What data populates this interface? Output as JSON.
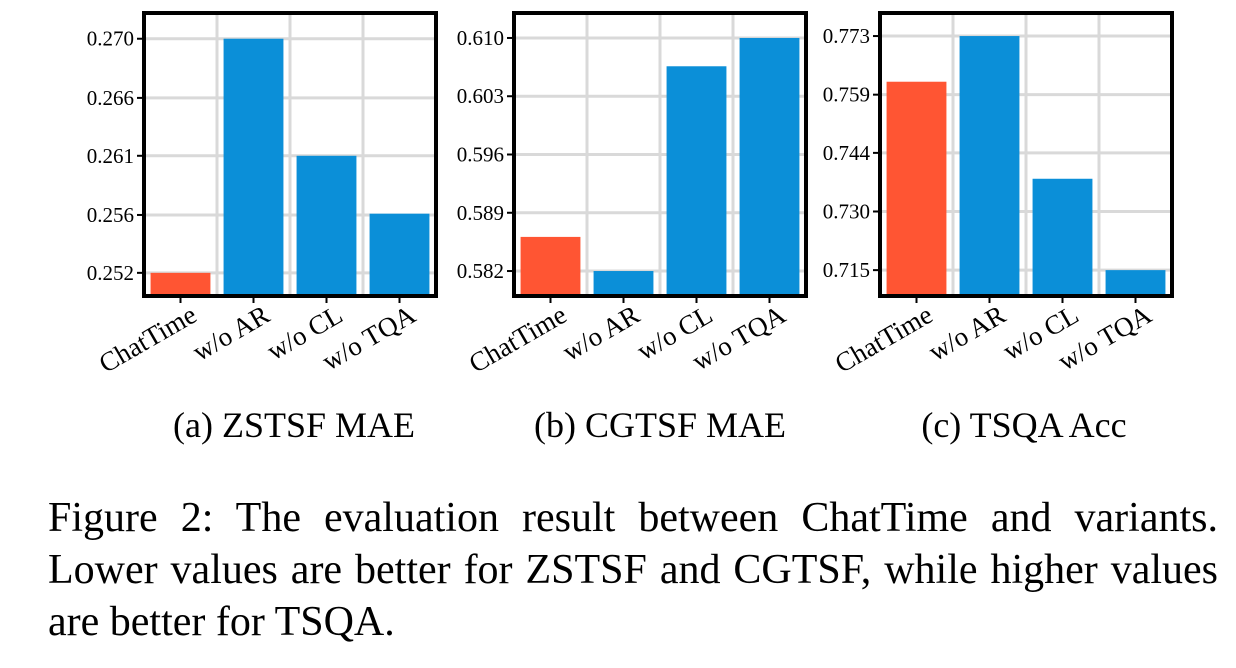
{
  "colors": {
    "highlight": "#ff5533",
    "bar": "#0b8fd8",
    "grid": "#d9d9d9",
    "frame": "#000000"
  },
  "chart_data": [
    {
      "type": "bar",
      "title": "(a) ZSTSF MAE",
      "categories": [
        "ChatTime",
        "w/o AR",
        "w/o CL",
        "w/o TQA"
      ],
      "values": [
        0.2518,
        0.27,
        0.2609,
        0.2564
      ],
      "highlight_index": 0,
      "yticks": [
        "0.252",
        "0.256",
        "0.261",
        "0.266",
        "0.270"
      ],
      "ytick_values": [
        0.2518,
        0.2563,
        0.2609,
        0.2654,
        0.27
      ],
      "ylim": [
        0.25,
        0.272
      ],
      "grid": true
    },
    {
      "type": "bar",
      "title": "(b) CGTSF MAE",
      "categories": [
        "ChatTime",
        "w/o AR",
        "w/o CL",
        "w/o TQA"
      ],
      "values": [
        0.5861,
        0.582,
        0.6066,
        0.61
      ],
      "highlight_index": 0,
      "yticks": [
        "0.582",
        "0.589",
        "0.596",
        "0.603",
        "0.610"
      ],
      "ytick_values": [
        0.582,
        0.589,
        0.596,
        0.603,
        0.61
      ],
      "ylim": [
        0.579,
        0.613
      ],
      "grid": true
    },
    {
      "type": "bar",
      "title": "(c) TSQA Acc",
      "categories": [
        "ChatTime",
        "w/o AR",
        "w/o CL",
        "w/o TQA"
      ],
      "values": [
        0.762,
        0.7733,
        0.738,
        0.7154
      ],
      "highlight_index": 0,
      "yticks": [
        "0.715",
        "0.730",
        "0.744",
        "0.759",
        "0.773"
      ],
      "ytick_values": [
        0.7154,
        0.7299,
        0.7444,
        0.7588,
        0.7733
      ],
      "ylim": [
        0.709,
        0.779
      ],
      "grid": true
    }
  ],
  "caption": "Figure 2: The evaluation result between ChatTime and variants. Lower values are better for ZSTSF and CGTSF, while higher values are better for TSQA."
}
